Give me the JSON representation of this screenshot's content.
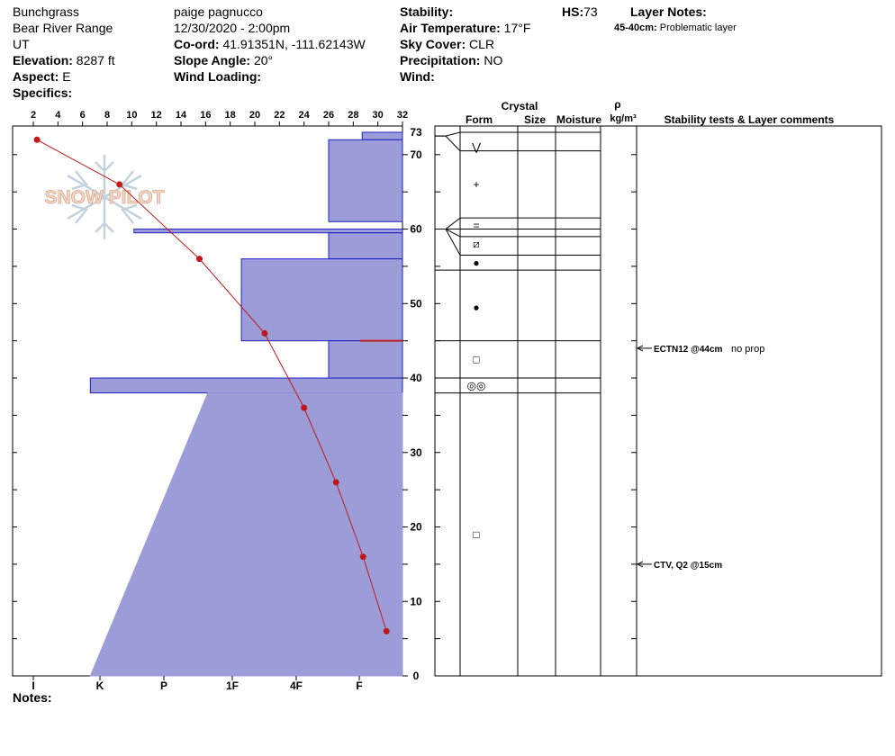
{
  "header": {
    "location": "Bunchgrass",
    "range": "Bear River Range",
    "state": "UT",
    "elevation_label": "Elevation:",
    "elevation_value": "8287 ft",
    "aspect_label": "Aspect:",
    "aspect_value": "E",
    "specifics_label": "Specifics:",
    "observer": "paige pagnucco",
    "datetime": "12/30/2020 - 2:00pm",
    "coord_label": "Co-ord:",
    "coord_value": "41.91351N, -111.62143W",
    "slope_label": "Slope Angle:",
    "slope_value": "20°",
    "wind_loading_label": "Wind Loading:",
    "stability_label": "Stability:",
    "air_temp_label": "Air Temperature:",
    "air_temp_value": "17°F",
    "sky_label": "Sky Cover:",
    "sky_value": "CLR",
    "precip_label": "Precipitation:",
    "precip_value": "NO",
    "wind_label": "Wind:",
    "hs_label": "HS:",
    "hs_value": "73",
    "layer_notes_label": "Layer Notes:",
    "layer_note_range": "45-40cm:",
    "layer_note_text": "Problematic layer",
    "notes_label": "Notes:"
  },
  "watermark": "SNOW PILOT",
  "columns": {
    "crystal": "Crystal",
    "form": "Form",
    "size": "Size",
    "moisture": "Moisture",
    "rho": "ρ",
    "density_unit": "kg/m³",
    "stability": "Stability tests & Layer comments"
  },
  "chart_data": {
    "type": "line",
    "temp_axis_ticks": [
      2,
      4,
      6,
      8,
      10,
      12,
      14,
      16,
      18,
      20,
      22,
      24,
      26,
      28,
      30,
      32
    ],
    "depth_axis_ticks": [
      0,
      10,
      20,
      30,
      40,
      50,
      60,
      70,
      73
    ],
    "depth_range": [
      0,
      73
    ],
    "hardness_labels": [
      "I",
      "K",
      "P",
      "1F",
      "4F",
      "F"
    ],
    "temperature_profile": [
      {
        "temp": 2.3,
        "depth": 72
      },
      {
        "temp": 9.0,
        "depth": 66
      },
      {
        "temp": 15.5,
        "depth": 56
      },
      {
        "temp": 20.8,
        "depth": 46
      },
      {
        "temp": 24.0,
        "depth": 36
      },
      {
        "temp": 26.6,
        "depth": 26
      },
      {
        "temp": 28.8,
        "depth": 16
      },
      {
        "temp": 30.7,
        "depth": 6
      }
    ],
    "hardness_profile": [
      {
        "top": 73,
        "bottom": 72,
        "hardness": 1.2
      },
      {
        "top": 72,
        "bottom": 61,
        "hardness": 2.2
      },
      {
        "top": 60,
        "bottom": 59.5,
        "hardness": 8.0
      },
      {
        "top": 59.5,
        "bottom": 56,
        "hardness": 2.2
      },
      {
        "top": 56,
        "bottom": 45,
        "hardness": 4.8
      },
      {
        "top": 45,
        "bottom": 40,
        "hardness": 2.2
      },
      {
        "top": 40,
        "bottom": 38,
        "hardness": 9.3
      },
      {
        "top": 38,
        "bottom": 0,
        "hardness_top": 5.8,
        "hardness_bottom": 9.3
      }
    ],
    "layer_boundaries": [
      73,
      70.5,
      61.5,
      60,
      59,
      56.5,
      54.5,
      45,
      40,
      38
    ],
    "grain_forms": [
      {
        "depth": 71,
        "symbol": "⋁"
      },
      {
        "depth": 66,
        "symbol": "+"
      },
      {
        "depth": 60.5,
        "symbol": "="
      },
      {
        "depth": 58,
        "symbol": "⧄"
      },
      {
        "depth": 55.5,
        "symbol": "●"
      },
      {
        "depth": 49.5,
        "symbol": "●"
      },
      {
        "depth": 42.5,
        "symbol": "□"
      },
      {
        "depth": 39,
        "symbol": "◎◎"
      },
      {
        "depth": 19,
        "symbol": "□"
      }
    ],
    "stability_tests": [
      {
        "depth": 44,
        "label": "ECTN12 @44cm",
        "comment": "no prop"
      },
      {
        "depth": 15,
        "label": "CTV, Q2 @15cm",
        "comment": ""
      }
    ]
  }
}
